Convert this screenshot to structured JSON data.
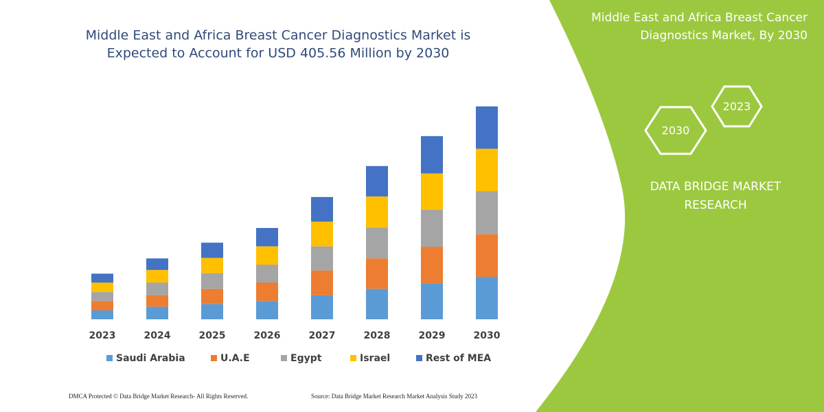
{
  "chart_data": {
    "type": "stacked-bar",
    "title": [
      "Middle East and Africa Breast Cancer Diagnostics Market is",
      "Expected to Account for USD 405.56 Million by 2030"
    ],
    "categories": [
      "2023",
      "2024",
      "2025",
      "2026",
      "2027",
      "2028",
      "2029",
      "2030"
    ],
    "series": [
      {
        "name": "Saudi Arabia",
        "color": "#5b9bd5",
        "values": [
          17,
          24,
          29,
          35,
          46,
          58,
          69,
          81
        ]
      },
      {
        "name": "U.A.E",
        "color": "#ed7d31",
        "values": [
          18,
          22,
          29,
          35,
          47,
          58,
          69,
          81
        ]
      },
      {
        "name": "Egypt",
        "color": "#a5a5a5",
        "values": [
          17,
          24,
          30,
          34,
          46,
          59,
          71,
          82
        ]
      },
      {
        "name": "Israel",
        "color": "#ffc000",
        "values": [
          18,
          24,
          29,
          35,
          47,
          59,
          69,
          81
        ]
      },
      {
        "name": "Rest of MEA",
        "color": "#4472c4",
        "values": [
          17,
          22,
          29,
          35,
          47,
          58,
          71,
          80.56
        ]
      }
    ]
  },
  "panel": {
    "heading": [
      "Middle East and Africa Breast Cancer",
      "Diagnostics Market, By 2030"
    ],
    "hex_top": "2023",
    "hex_bottom": "2030",
    "brand": [
      "DATA BRIDGE MARKET",
      "RESEARCH"
    ]
  },
  "footer": {
    "left": "DMCA Protected © Data Bridge Market Research-  All Rights Reserved.",
    "right": "Source: Data Bridge Market Research  Market Analysis Study 2023"
  }
}
